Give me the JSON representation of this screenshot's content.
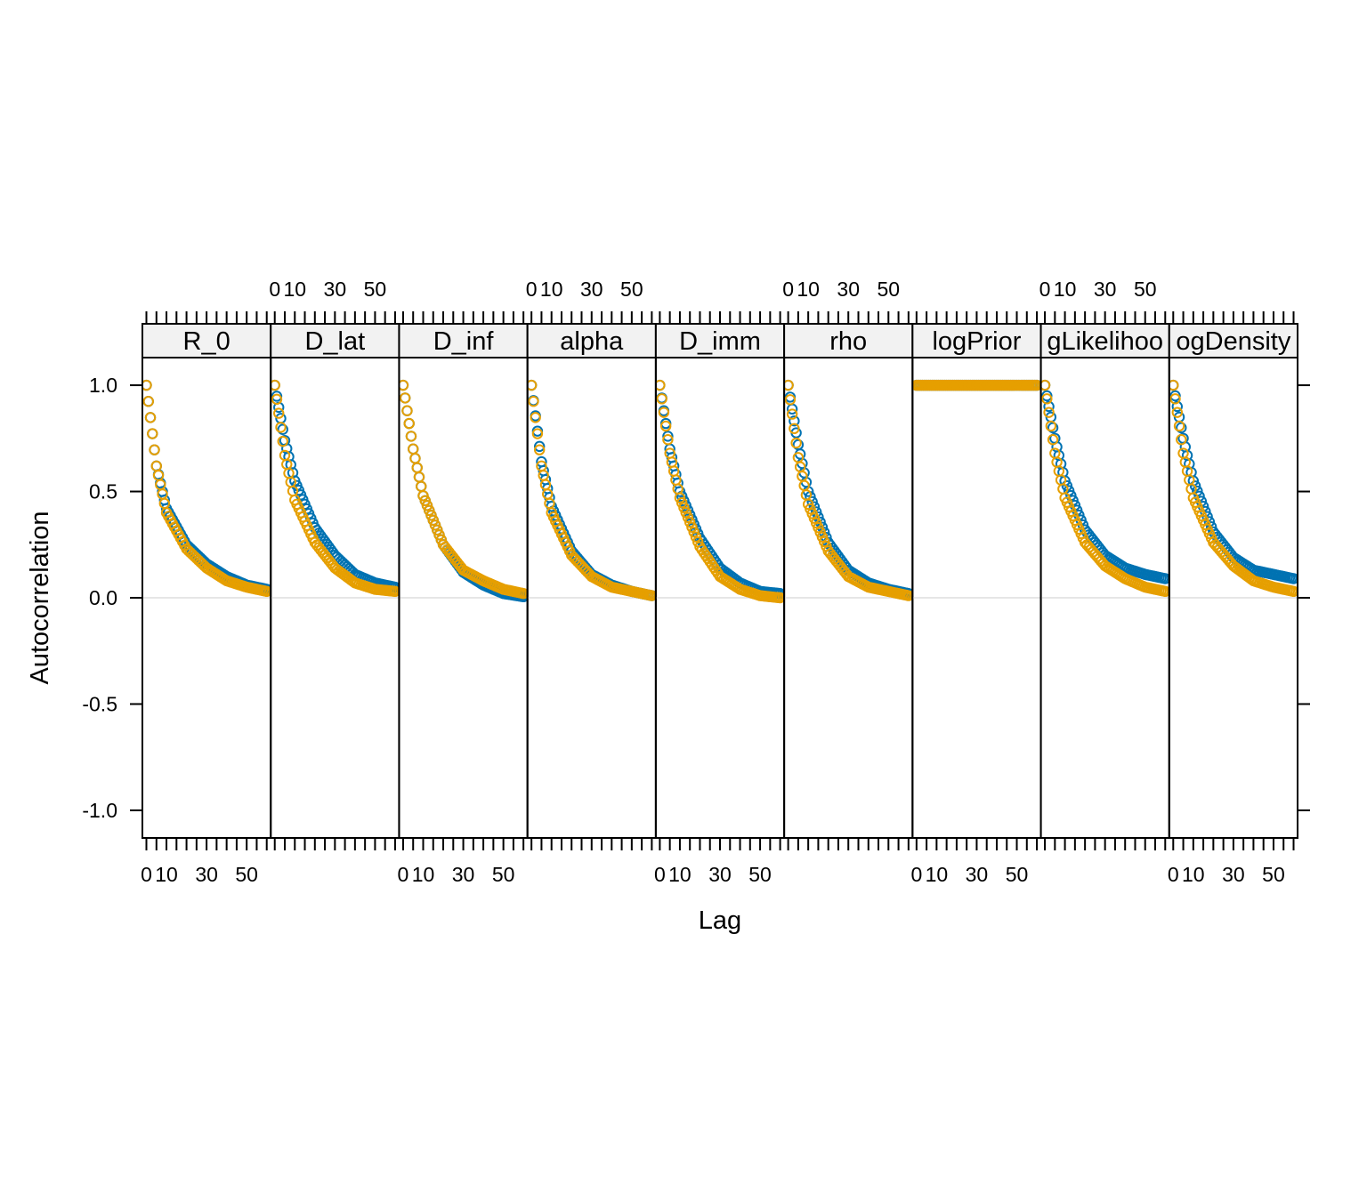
{
  "chart_data": {
    "type": "scatter",
    "xlabel": "Lag",
    "ylabel": "Autocorrelation",
    "xlim": [
      -2,
      62
    ],
    "ylim": [
      -1.13,
      1.13
    ],
    "x_ticks": [
      0,
      5,
      10,
      15,
      20,
      25,
      30,
      35,
      40,
      45,
      50,
      55,
      60
    ],
    "x_tick_labels": [
      {
        "value": 0,
        "label": "0"
      },
      {
        "value": 10,
        "label": "10"
      },
      {
        "value": 30,
        "label": "30"
      },
      {
        "value": 50,
        "label": "50"
      }
    ],
    "y_ticks": [
      {
        "value": 1.0,
        "label": "1.0"
      },
      {
        "value": 0.5,
        "label": "0.5"
      },
      {
        "value": 0.0,
        "label": "0.0"
      },
      {
        "value": -0.5,
        "label": "-0.5"
      },
      {
        "value": -1.0,
        "label": "-1.0"
      }
    ],
    "reference_line": 0,
    "series_colors": [
      "#0072b2",
      "#e69f00"
    ],
    "panels": [
      {
        "name": "R_0",
        "series": [
          {
            "values": [
              [
                0,
                1.0
              ],
              [
                5,
                0.62
              ],
              [
                10,
                0.42
              ],
              [
                20,
                0.25
              ],
              [
                30,
                0.16
              ],
              [
                40,
                0.1
              ],
              [
                50,
                0.06
              ],
              [
                60,
                0.04
              ]
            ]
          },
          {
            "values": [
              [
                0,
                1.0
              ],
              [
                5,
                0.62
              ],
              [
                10,
                0.4
              ],
              [
                20,
                0.23
              ],
              [
                30,
                0.14
              ],
              [
                40,
                0.08
              ],
              [
                50,
                0.05
              ],
              [
                60,
                0.03
              ]
            ]
          }
        ]
      },
      {
        "name": "D_lat",
        "series": [
          {
            "values": [
              [
                0,
                1.0
              ],
              [
                5,
                0.74
              ],
              [
                10,
                0.55
              ],
              [
                20,
                0.33
              ],
              [
                30,
                0.2
              ],
              [
                40,
                0.11
              ],
              [
                50,
                0.07
              ],
              [
                60,
                0.05
              ]
            ]
          },
          {
            "values": [
              [
                0,
                1.0
              ],
              [
                5,
                0.67
              ],
              [
                10,
                0.46
              ],
              [
                20,
                0.26
              ],
              [
                30,
                0.14
              ],
              [
                40,
                0.07
              ],
              [
                50,
                0.04
              ],
              [
                60,
                0.03
              ]
            ]
          }
        ]
      },
      {
        "name": "D_inf",
        "series": [
          {
            "values": [
              [
                0,
                1.0
              ],
              [
                5,
                0.7
              ],
              [
                10,
                0.48
              ],
              [
                20,
                0.25
              ],
              [
                30,
                0.12
              ],
              [
                40,
                0.06
              ],
              [
                50,
                0.02
              ],
              [
                60,
                0.005
              ]
            ]
          },
          {
            "values": [
              [
                0,
                1.0
              ],
              [
                5,
                0.7
              ],
              [
                10,
                0.48
              ],
              [
                20,
                0.25
              ],
              [
                30,
                0.13
              ],
              [
                40,
                0.08
              ],
              [
                50,
                0.04
              ],
              [
                60,
                0.02
              ]
            ]
          }
        ]
      },
      {
        "name": "alpha",
        "series": [
          {
            "values": [
              [
                0,
                1.0
              ],
              [
                5,
                0.64
              ],
              [
                10,
                0.43
              ],
              [
                20,
                0.22
              ],
              [
                30,
                0.11
              ],
              [
                40,
                0.06
              ],
              [
                50,
                0.03
              ],
              [
                60,
                0.01
              ]
            ]
          },
          {
            "values": [
              [
                0,
                1.0
              ],
              [
                5,
                0.62
              ],
              [
                10,
                0.4
              ],
              [
                20,
                0.2
              ],
              [
                30,
                0.1
              ],
              [
                40,
                0.05
              ],
              [
                50,
                0.03
              ],
              [
                60,
                0.01
              ]
            ]
          }
        ]
      },
      {
        "name": "D_imm",
        "series": [
          {
            "values": [
              [
                0,
                1.0
              ],
              [
                5,
                0.7
              ],
              [
                10,
                0.5
              ],
              [
                20,
                0.28
              ],
              [
                30,
                0.14
              ],
              [
                40,
                0.07
              ],
              [
                50,
                0.03
              ],
              [
                60,
                0.02
              ]
            ]
          },
          {
            "values": [
              [
                0,
                1.0
              ],
              [
                5,
                0.68
              ],
              [
                10,
                0.47
              ],
              [
                20,
                0.24
              ],
              [
                30,
                0.1
              ],
              [
                40,
                0.04
              ],
              [
                50,
                0.01
              ],
              [
                60,
                0.0
              ]
            ]
          }
        ]
      },
      {
        "name": "rho",
        "series": [
          {
            "values": [
              [
                0,
                1.0
              ],
              [
                5,
                0.72
              ],
              [
                10,
                0.5
              ],
              [
                20,
                0.26
              ],
              [
                30,
                0.13
              ],
              [
                40,
                0.07
              ],
              [
                50,
                0.04
              ],
              [
                60,
                0.02
              ]
            ]
          },
          {
            "values": [
              [
                0,
                1.0
              ],
              [
                5,
                0.66
              ],
              [
                10,
                0.44
              ],
              [
                20,
                0.22
              ],
              [
                30,
                0.1
              ],
              [
                40,
                0.05
              ],
              [
                50,
                0.03
              ],
              [
                60,
                0.01
              ]
            ]
          }
        ]
      },
      {
        "name": "logPrior",
        "series": [
          {
            "values": [
              [
                0,
                1.0
              ],
              [
                60,
                1.0
              ]
            ]
          },
          {
            "values": [
              [
                0,
                1.0
              ],
              [
                60,
                1.0
              ]
            ]
          }
        ]
      },
      {
        "name": "logLikelihood",
        "label": "gLikelihoo",
        "series": [
          {
            "values": [
              [
                0,
                1.0
              ],
              [
                5,
                0.75
              ],
              [
                10,
                0.55
              ],
              [
                20,
                0.32
              ],
              [
                30,
                0.2
              ],
              [
                40,
                0.14
              ],
              [
                50,
                0.11
              ],
              [
                60,
                0.09
              ]
            ]
          },
          {
            "values": [
              [
                0,
                1.0
              ],
              [
                5,
                0.68
              ],
              [
                10,
                0.47
              ],
              [
                20,
                0.26
              ],
              [
                30,
                0.15
              ],
              [
                40,
                0.09
              ],
              [
                50,
                0.05
              ],
              [
                60,
                0.03
              ]
            ]
          }
        ]
      },
      {
        "name": "logDensity",
        "label": "ogDensity",
        "series": [
          {
            "values": [
              [
                0,
                1.0
              ],
              [
                5,
                0.75
              ],
              [
                10,
                0.55
              ],
              [
                20,
                0.31
              ],
              [
                30,
                0.19
              ],
              [
                40,
                0.13
              ],
              [
                50,
                0.11
              ],
              [
                60,
                0.09
              ]
            ]
          },
          {
            "values": [
              [
                0,
                1.0
              ],
              [
                5,
                0.68
              ],
              [
                10,
                0.47
              ],
              [
                20,
                0.26
              ],
              [
                30,
                0.15
              ],
              [
                40,
                0.08
              ],
              [
                50,
                0.05
              ],
              [
                60,
                0.03
              ]
            ]
          }
        ]
      }
    ]
  }
}
